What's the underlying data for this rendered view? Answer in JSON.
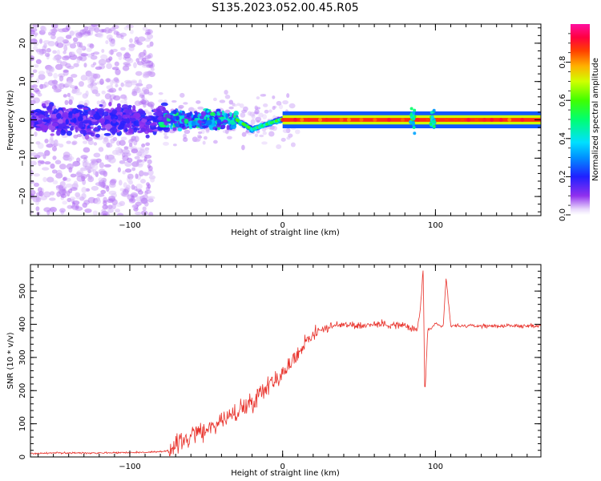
{
  "title": "S135.2023.052.00.45.R05",
  "chart_data": [
    {
      "type": "heatmap",
      "xlabel": "Height of straight line (km)",
      "ylabel": "Frequency (Hz)",
      "xlim": [
        -165,
        169
      ],
      "ylim": [
        -25,
        25
      ],
      "x_ticks": [
        -100,
        0,
        100
      ],
      "y_ticks": [
        -20,
        -10,
        0,
        10,
        20
      ],
      "colorbar": {
        "label": "Normalized spectral amplitude",
        "range": [
          0,
          1
        ],
        "ticks": [
          0.0,
          0.2,
          0.4,
          0.6,
          0.8
        ],
        "colormap": "hsv-like (purple to blue to cyan to green to yellow to orange to red to magenta)"
      },
      "features": [
        {
          "x_range": [
            -165,
            -80
          ],
          "description": "diffuse broadband noise spread across all frequencies, low amplitude"
        },
        {
          "x_range": [
            -80,
            -30
          ],
          "description": "band around 0 Hz with scattered patches up to 0.5 amplitude"
        },
        {
          "x_range": [
            -30,
            0
          ],
          "description": "curved band near 0 Hz, dips to about -2 Hz near -20 km"
        },
        {
          "x_range": [
            0,
            169
          ],
          "description": "narrow high amplitude line at 0 Hz, amplitude near 0.9"
        }
      ]
    },
    {
      "type": "line",
      "xlabel": "Height of straight line (km)",
      "ylabel": "SNR (10 * v/v)",
      "xlim": [
        -165,
        169
      ],
      "ylim": [
        0,
        580
      ],
      "x_ticks": [
        -100,
        0,
        100
      ],
      "y_ticks": [
        0,
        100,
        200,
        300,
        400,
        500
      ],
      "color": "#e8312a",
      "x": [
        -165,
        -150,
        -130,
        -110,
        -90,
        -80,
        -75,
        -70,
        -65,
        -60,
        -55,
        -50,
        -45,
        -40,
        -35,
        -30,
        -25,
        -20,
        -15,
        -10,
        -5,
        0,
        5,
        10,
        15,
        20,
        25,
        30,
        35,
        40,
        45,
        50,
        60,
        70,
        80,
        88,
        90,
        92,
        93,
        95,
        100,
        105,
        107,
        110,
        120,
        130,
        140,
        150,
        160,
        169
      ],
      "y": [
        10,
        12,
        12,
        13,
        14,
        15,
        20,
        35,
        50,
        60,
        75,
        85,
        95,
        110,
        120,
        135,
        150,
        170,
        190,
        220,
        235,
        250,
        280,
        310,
        350,
        370,
        385,
        390,
        395,
        400,
        400,
        395,
        400,
        400,
        395,
        380,
        440,
        570,
        190,
        380,
        400,
        390,
        540,
        395,
        395,
        395,
        395,
        395,
        395,
        395
      ]
    }
  ]
}
